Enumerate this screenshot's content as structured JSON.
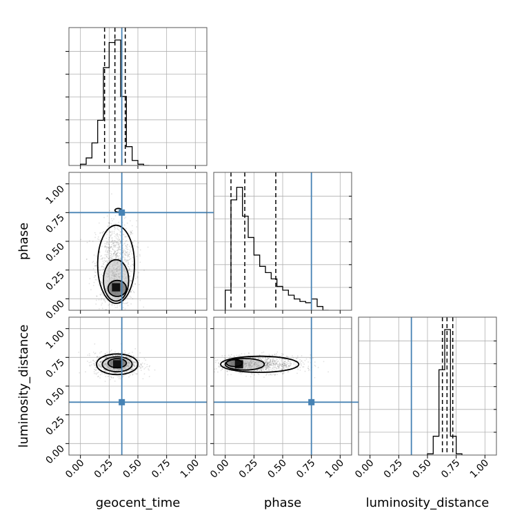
{
  "chart_data": {
    "type": "corner",
    "parameters": [
      "geocent_time",
      "phase",
      "luminosity_distance"
    ],
    "axis_labels": {
      "x": [
        "geocent_time",
        "phase",
        "luminosity_distance"
      ],
      "y": [
        "",
        "phase",
        "luminosity_distance"
      ]
    },
    "tick_labels": [
      "0.00",
      "0.25",
      "0.50",
      "0.75",
      "1.00"
    ],
    "tick_values": [
      0.0,
      0.25,
      0.5,
      0.75,
      1.0
    ],
    "range": [
      -0.1,
      1.1
    ],
    "grid": true,
    "truth": {
      "geocent_time": 0.36,
      "phase": 0.75,
      "luminosity_distance": 0.36
    },
    "truth_color": "#4682b4",
    "marginals": {
      "geocent_time": {
        "bins": [
          0.0,
          0.05,
          0.1,
          0.15,
          0.2,
          0.25,
          0.3,
          0.35,
          0.4,
          0.45,
          0.5,
          0.55,
          0.6
        ],
        "counts": [
          0.01,
          0.06,
          0.18,
          0.36,
          0.78,
          0.98,
          1.0,
          0.55,
          0.15,
          0.04,
          0.01,
          0.0
        ],
        "quantiles": [
          0.21,
          0.3,
          0.39
        ]
      },
      "phase": {
        "bins": [
          0.0,
          0.05,
          0.1,
          0.15,
          0.2,
          0.25,
          0.3,
          0.35,
          0.4,
          0.45,
          0.5,
          0.55,
          0.6,
          0.65,
          0.7,
          0.75,
          0.8,
          0.85,
          0.9
        ],
        "counts": [
          0.16,
          0.88,
          0.98,
          0.75,
          0.58,
          0.44,
          0.35,
          0.3,
          0.25,
          0.19,
          0.16,
          0.12,
          0.09,
          0.07,
          0.06,
          0.09,
          0.03,
          0.0
        ],
        "quantiles": [
          0.05,
          0.17,
          0.44
        ]
      },
      "luminosity_distance": {
        "bins": [
          0.5,
          0.55,
          0.6,
          0.65,
          0.7,
          0.75,
          0.8
        ],
        "counts": [
          0.01,
          0.15,
          0.68,
          1.0,
          0.15,
          0.01
        ],
        "quantiles": [
          0.63,
          0.67,
          0.72
        ]
      }
    },
    "joint": [
      {
        "x": "geocent_time",
        "y": "phase",
        "center": [
          0.31,
          0.1
        ],
        "contours": [
          {
            "cx": 0.31,
            "cy": 0.3,
            "rx": 0.16,
            "ry": 0.34
          },
          {
            "cx": 0.31,
            "cy": 0.16,
            "rx": 0.11,
            "ry": 0.18
          },
          {
            "cx": 0.32,
            "cy": 0.09,
            "rx": 0.08,
            "ry": 0.07
          }
        ],
        "peak_island": {
          "cx": 0.33,
          "cy": 0.77,
          "rx": 0.03,
          "ry": 0.01
        }
      },
      {
        "x": "geocent_time",
        "y": "luminosity_distance",
        "center": [
          0.32,
          0.69
        ],
        "contours": [
          {
            "cx": 0.32,
            "cy": 0.69,
            "rx": 0.18,
            "ry": 0.09
          },
          {
            "cx": 0.32,
            "cy": 0.69,
            "rx": 0.13,
            "ry": 0.065
          },
          {
            "cx": 0.32,
            "cy": 0.7,
            "rx": 0.08,
            "ry": 0.04
          }
        ]
      },
      {
        "x": "phase",
        "y": "luminosity_distance",
        "center": [
          0.12,
          0.69
        ],
        "contours": [
          {
            "cx": 0.3,
            "cy": 0.69,
            "rx": 0.34,
            "ry": 0.07
          },
          {
            "cx": 0.17,
            "cy": 0.69,
            "rx": 0.17,
            "ry": 0.05
          },
          {
            "cx": 0.08,
            "cy": 0.7,
            "rx": 0.07,
            "ry": 0.03
          }
        ]
      }
    ]
  }
}
